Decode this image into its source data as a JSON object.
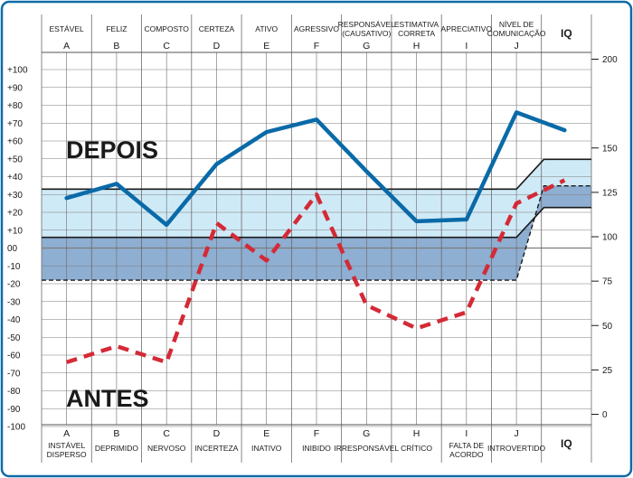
{
  "chart_data": {
    "type": "line",
    "categories": [
      "A",
      "B",
      "C",
      "D",
      "E",
      "F",
      "G",
      "H",
      "I",
      "J",
      "IQ"
    ],
    "top_traits": [
      [
        "ESTÁVEL"
      ],
      [
        "FELIZ"
      ],
      [
        "COMPOSTO"
      ],
      [
        "CERTEZA"
      ],
      [
        "ATIVO"
      ],
      [
        "AGRESSIVO"
      ],
      [
        "RESPONSÁVEL",
        "(CAUSATIVO)"
      ],
      [
        "ESTIMATIVA",
        "CORRETA"
      ],
      [
        "APRECIATIVO"
      ],
      [
        "NÍVEL DE",
        "COMUNICAÇÃO"
      ],
      [
        "IQ"
      ]
    ],
    "bottom_traits": [
      [
        "INSTÁVEL",
        "DISPERSO"
      ],
      [
        "DEPRIMIDO"
      ],
      [
        "NERVOSO"
      ],
      [
        "INCERTEZA"
      ],
      [
        "INATIVO"
      ],
      [
        "INIBIDO"
      ],
      [
        "IRRESPONSÁVEL"
      ],
      [
        "CRÍTICO"
      ],
      [
        "FALTA DE",
        "ACORDO"
      ],
      [
        "INTROVERTIDO"
      ],
      [
        "IQ"
      ]
    ],
    "ylim": [
      -100,
      100
    ],
    "y_ticks": [
      "+100",
      "+90",
      "+80",
      "+70",
      "+60",
      "+50",
      "+40",
      "+30",
      "+20",
      "+10",
      "00",
      "-10",
      "-20",
      "-30",
      "-40",
      "-50",
      "-60",
      "-70",
      "-80",
      "-90",
      "-100"
    ],
    "iq_ticks": [
      {
        "label": "200",
        "value": 200
      },
      {
        "label": "150",
        "value": 150
      },
      {
        "label": "125",
        "value": 125
      },
      {
        "label": "100",
        "value": 100
      },
      {
        "label": "75",
        "value": 75
      },
      {
        "label": "50",
        "value": 50
      },
      {
        "label": "25",
        "value": 25
      },
      {
        "label": "0",
        "value": 0
      }
    ],
    "bands": {
      "upper_line": 33,
      "middle_line": 6,
      "lower_dashed": -18
    },
    "series": [
      {
        "name": "DEPOIS",
        "color": "#0a6aa8",
        "style": "solid",
        "values": [
          28,
          36,
          13,
          47,
          65,
          72,
          43,
          15,
          16,
          76,
          66
        ]
      },
      {
        "name": "ANTES",
        "color": "#d42a36",
        "style": "dashed",
        "values": [
          -64,
          -55,
          -64,
          14,
          -7,
          30,
          -32,
          -45,
          -36,
          25,
          38
        ]
      }
    ],
    "colors": {
      "border": "#0e6aa8",
      "grid": "#444444",
      "band_light": "#cfeaf7",
      "band_dark": "#8eaed2"
    }
  }
}
